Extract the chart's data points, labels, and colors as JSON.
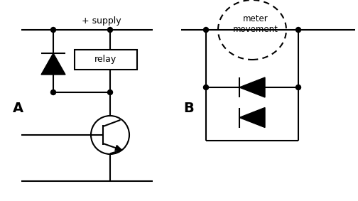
{
  "bg_color": "#ffffff",
  "line_color": "#000000",
  "label_A": "A",
  "label_B": "B",
  "label_supply": "+ supply",
  "label_relay": "relay",
  "label_meter": "meter\nmovement",
  "figsize": [
    5.04,
    2.83
  ],
  "dpi": 100,
  "lw": 1.5
}
